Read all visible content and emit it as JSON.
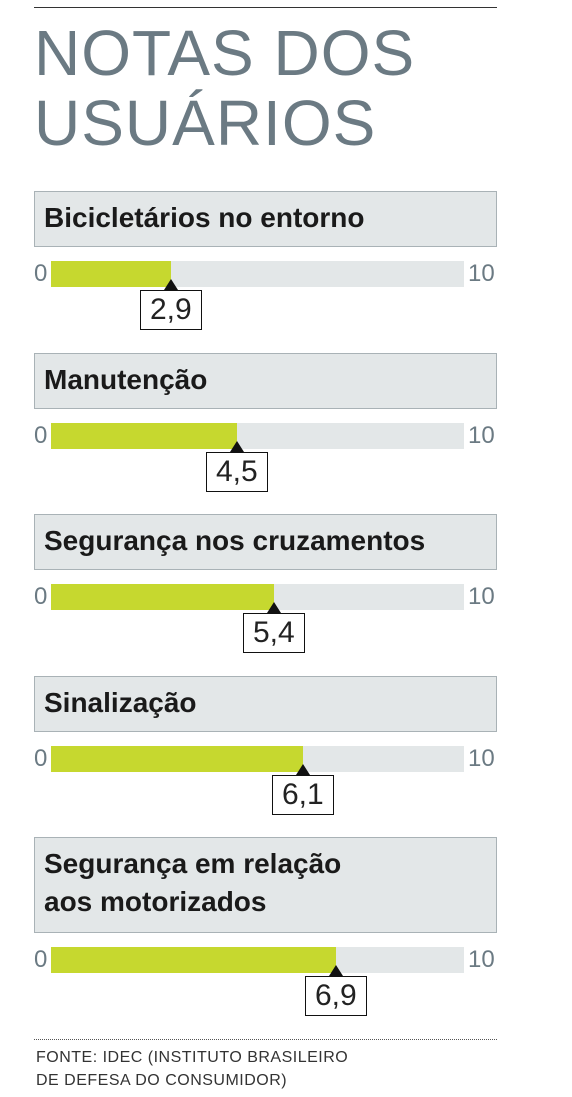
{
  "title_lines": [
    "NOTAS DOS",
    "USUÁRIOS"
  ],
  "chart_data": {
    "type": "bar",
    "orientation": "horizontal",
    "title": "NOTAS DOS USUÁRIOS",
    "xlim": [
      0,
      10
    ],
    "tick_min": "0",
    "tick_max": "10",
    "colors": {
      "fill": "#c6d82f",
      "track": "#e3e7e8",
      "label_box": "#e3e7e8"
    },
    "categories": [
      "Bicicletários no entorno",
      "Manutenção",
      "Segurança nos cruzamentos",
      "Sinalização",
      "Segurança em relação\naos motorizados"
    ],
    "values": [
      2.9,
      4.5,
      5.4,
      6.1,
      6.9
    ],
    "value_labels": [
      "2,9",
      "4,5",
      "5,4",
      "6,1",
      "6,9"
    ]
  },
  "footer": "FONTE: IDEC (INSTITUTO BRASILEIRO\nDE DEFESA DO CONSUMIDOR)"
}
